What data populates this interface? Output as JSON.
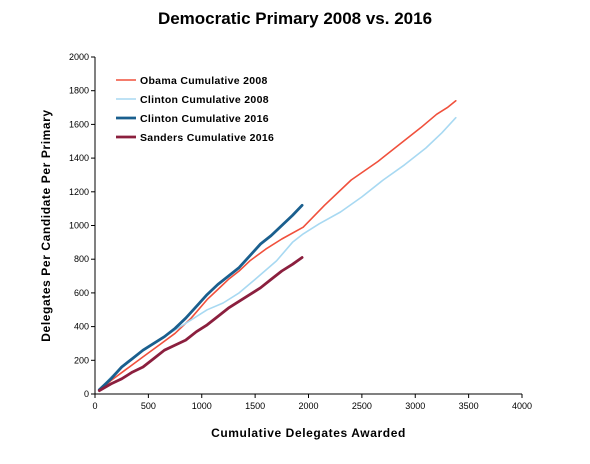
{
  "chart_data": {
    "type": "line",
    "title": "Democratic Primary 2008 vs. 2016",
    "xlabel": "Cumulative  Delegates  Awarded",
    "ylabel": "Delegates  Per Candidate  Per Primary",
    "xlim": [
      0,
      4000
    ],
    "ylim": [
      0,
      2000
    ],
    "x_ticks": [
      0,
      500,
      1000,
      1500,
      2000,
      2500,
      3000,
      3500,
      4000
    ],
    "y_ticks": [
      0,
      200,
      400,
      600,
      800,
      1000,
      1200,
      1400,
      1600,
      1800,
      2000
    ],
    "grid": false,
    "legend_position": "top-left",
    "series": [
      {
        "name": "Obama  Cumulative  2008",
        "color": "#f0503c",
        "width": 1.6,
        "x": [
          40,
          150,
          300,
          450,
          600,
          750,
          900,
          1050,
          1150,
          1250,
          1350,
          1450,
          1600,
          1750,
          1950,
          2150,
          2400,
          2650,
          2850,
          3050,
          3200,
          3300,
          3380
        ],
        "y": [
          20,
          80,
          150,
          220,
          290,
          360,
          450,
          560,
          620,
          680,
          730,
          790,
          860,
          920,
          990,
          1120,
          1270,
          1380,
          1480,
          1580,
          1660,
          1700,
          1740
        ]
      },
      {
        "name": "Clinton  Cumulative  2008",
        "color": "#a8d9f2",
        "width": 1.6,
        "x": [
          40,
          150,
          300,
          450,
          600,
          750,
          900,
          1050,
          1200,
          1350,
          1500,
          1700,
          1850,
          1950,
          2100,
          2300,
          2500,
          2700,
          2900,
          3100,
          3250,
          3380
        ],
        "y": [
          25,
          100,
          190,
          260,
          320,
          380,
          440,
          500,
          540,
          600,
          680,
          790,
          900,
          950,
          1010,
          1080,
          1170,
          1270,
          1360,
          1460,
          1550,
          1640
        ]
      },
      {
        "name": "Clinton  Cumulative  2016",
        "color": "#1a5f8e",
        "width": 2.8,
        "x": [
          40,
          150,
          250,
          350,
          450,
          550,
          650,
          750,
          850,
          950,
          1050,
          1150,
          1250,
          1350,
          1450,
          1550,
          1650,
          1750,
          1850,
          1940
        ],
        "y": [
          25,
          90,
          160,
          210,
          260,
          300,
          340,
          390,
          450,
          520,
          590,
          650,
          700,
          750,
          820,
          890,
          940,
          1000,
          1060,
          1120
        ]
      },
      {
        "name": "Sanders  Cumulative  2016",
        "color": "#8b1f3e",
        "width": 2.8,
        "x": [
          40,
          150,
          250,
          350,
          450,
          550,
          650,
          750,
          850,
          950,
          1050,
          1150,
          1250,
          1350,
          1450,
          1550,
          1650,
          1750,
          1850,
          1940
        ],
        "y": [
          20,
          60,
          90,
          130,
          160,
          210,
          260,
          290,
          320,
          370,
          410,
          460,
          510,
          550,
          590,
          630,
          680,
          730,
          770,
          810
        ]
      }
    ]
  }
}
